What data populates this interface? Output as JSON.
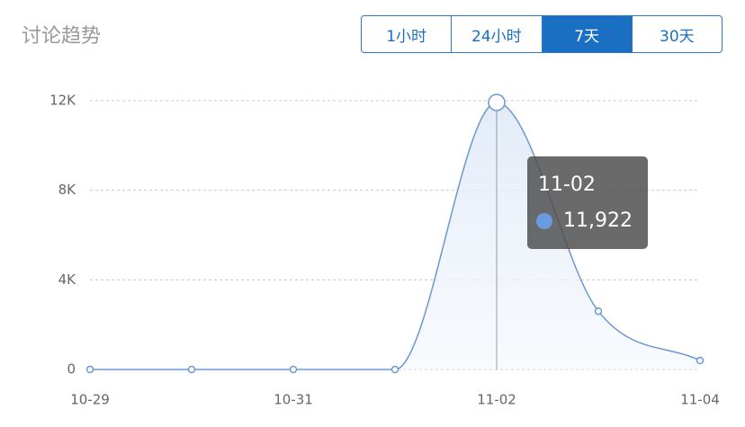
{
  "header": {
    "title": "讨论趋势",
    "tabs": [
      "1小时",
      "24小时",
      "7天",
      "30天"
    ],
    "active_tab_index": 2
  },
  "chart_data": {
    "type": "line",
    "categories": [
      "10-29",
      null,
      "10-31",
      null,
      "11-02",
      null,
      "11-04"
    ],
    "series": [
      {
        "color": "#6a98d4",
        "values": [
          0,
          0,
          0,
          0,
          11922,
          2600,
          400
        ],
        "value_labels": [
          null,
          null,
          null,
          null,
          "11,922",
          null,
          null
        ]
      }
    ],
    "ylim": [
      0,
      12000
    ],
    "yticks": [
      0,
      {
        "value": 4000,
        "label": "4K"
      },
      {
        "value": 8000,
        "label": "8K"
      },
      {
        "value": 12000,
        "label": "12K"
      }
    ],
    "grid": true,
    "highlight_index": 4
  }
}
